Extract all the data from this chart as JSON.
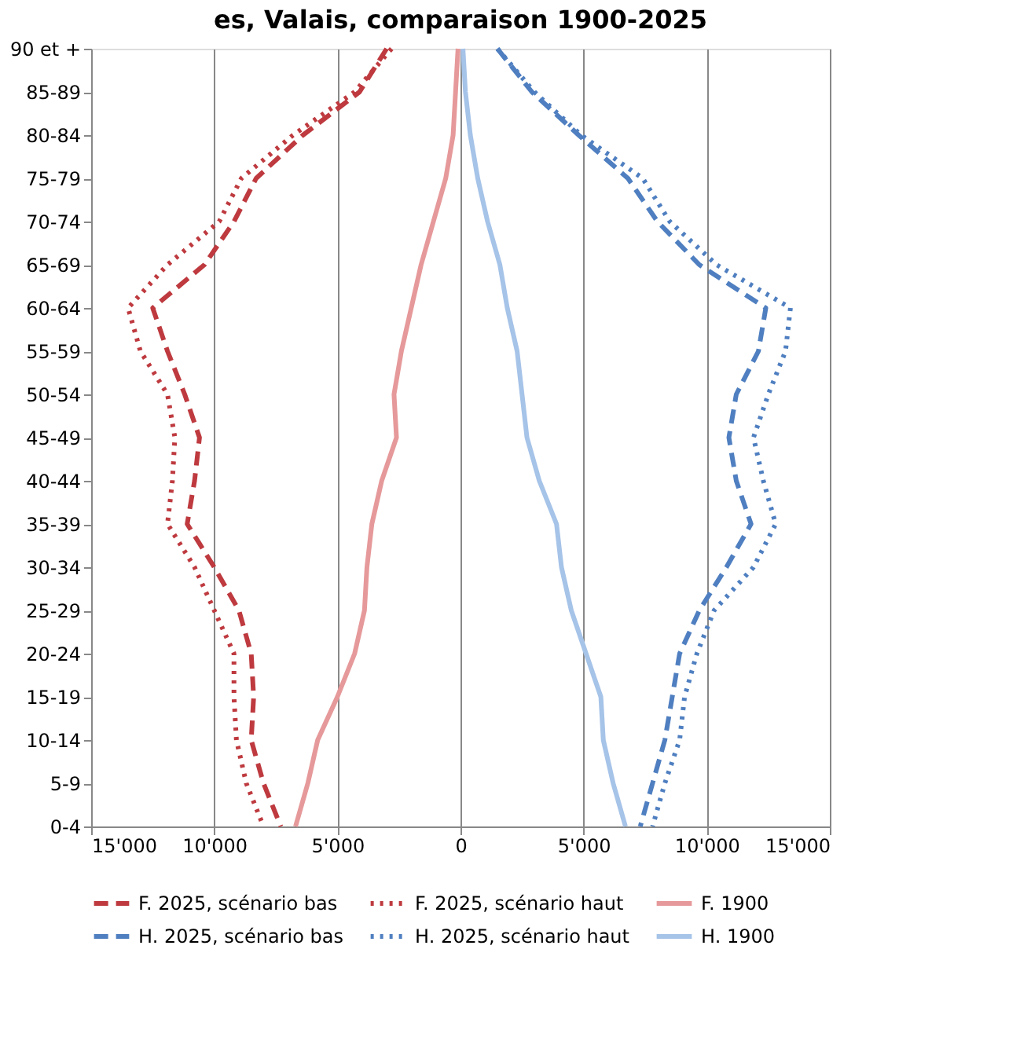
{
  "chart_data": {
    "type": "line",
    "orientation": "horizontal",
    "title": "es, Valais, comparaison 1900-2025",
    "categories": [
      "90 et +",
      "85-89",
      "80-84",
      "75-79",
      "70-74",
      "65-69",
      "60-64",
      "55-59",
      "50-54",
      "45-49",
      "40-44",
      "35-39",
      "30-34",
      "25-29",
      "20-24",
      "15-19",
      "10-14",
      "5-9",
      "0-4"
    ],
    "xlim": [
      -15000,
      15000
    ],
    "xticks": [
      {
        "value": -15000,
        "label": "15'000"
      },
      {
        "value": -10000,
        "label": "10'000"
      },
      {
        "value": -5000,
        "label": "5'000"
      },
      0,
      {
        "value": 5000,
        "label": "5'000"
      },
      {
        "value": 10000,
        "label": "10'000"
      },
      {
        "value": 15000,
        "label": "15'000"
      }
    ],
    "grid": "x",
    "legend": "bottom",
    "marker": "none",
    "series": [
      {
        "name": "F. 2025, scénario bas",
        "color": "#be3a3f",
        "line_style": "dashed",
        "values": [
          -3000,
          -4100,
          -6400,
          -8300,
          -9200,
          -10400,
          -12500,
          -11900,
          -11200,
          -10600,
          -10800,
          -11100,
          -10000,
          -9000,
          -8500,
          -8400,
          -8500,
          -8000,
          -7300
        ]
      },
      {
        "name": "F. 2025, scénario haut",
        "color": "#be3a3f",
        "line_style": "dotted",
        "values": [
          -2800,
          -4300,
          -6800,
          -8900,
          -9800,
          -11900,
          -13500,
          -13000,
          -11900,
          -11600,
          -11700,
          -11900,
          -10800,
          -10000,
          -9200,
          -9200,
          -9100,
          -8700,
          -8000
        ]
      },
      {
        "name": "F. 1900",
        "color": "#e6999a",
        "line_style": "solid",
        "values": [
          -100,
          -200,
          -300,
          -600,
          -1100,
          -1600,
          -2000,
          -2400,
          -2700,
          -2600,
          -3200,
          -3600,
          -3800,
          -3900,
          -4300,
          -5000,
          -5800,
          -6200,
          -6700
        ]
      },
      {
        "name": "H. 2025, scénario bas",
        "color": "#4f7fc0",
        "line_style": "dashed",
        "values": [
          1500,
          2900,
          4800,
          6800,
          8000,
          9700,
          12400,
          12100,
          11200,
          10900,
          11200,
          11800,
          10800,
          9700,
          8900,
          8600,
          8300,
          7800,
          7300
        ]
      },
      {
        "name": "H. 2025, scénario haut",
        "color": "#4f7fc0",
        "line_style": "dotted",
        "values": [
          1500,
          3000,
          4900,
          7400,
          8500,
          10400,
          13400,
          13200,
          12500,
          11900,
          12300,
          12800,
          11900,
          10300,
          9600,
          9100,
          8900,
          8300,
          7800
        ]
      },
      {
        "name": "H. 1900",
        "color": "#a6c3e8",
        "line_style": "solid",
        "values": [
          100,
          200,
          400,
          700,
          1100,
          1600,
          1900,
          2300,
          2500,
          2700,
          3200,
          3900,
          4100,
          4500,
          5100,
          5700,
          5800,
          6200,
          6700
        ]
      }
    ]
  }
}
